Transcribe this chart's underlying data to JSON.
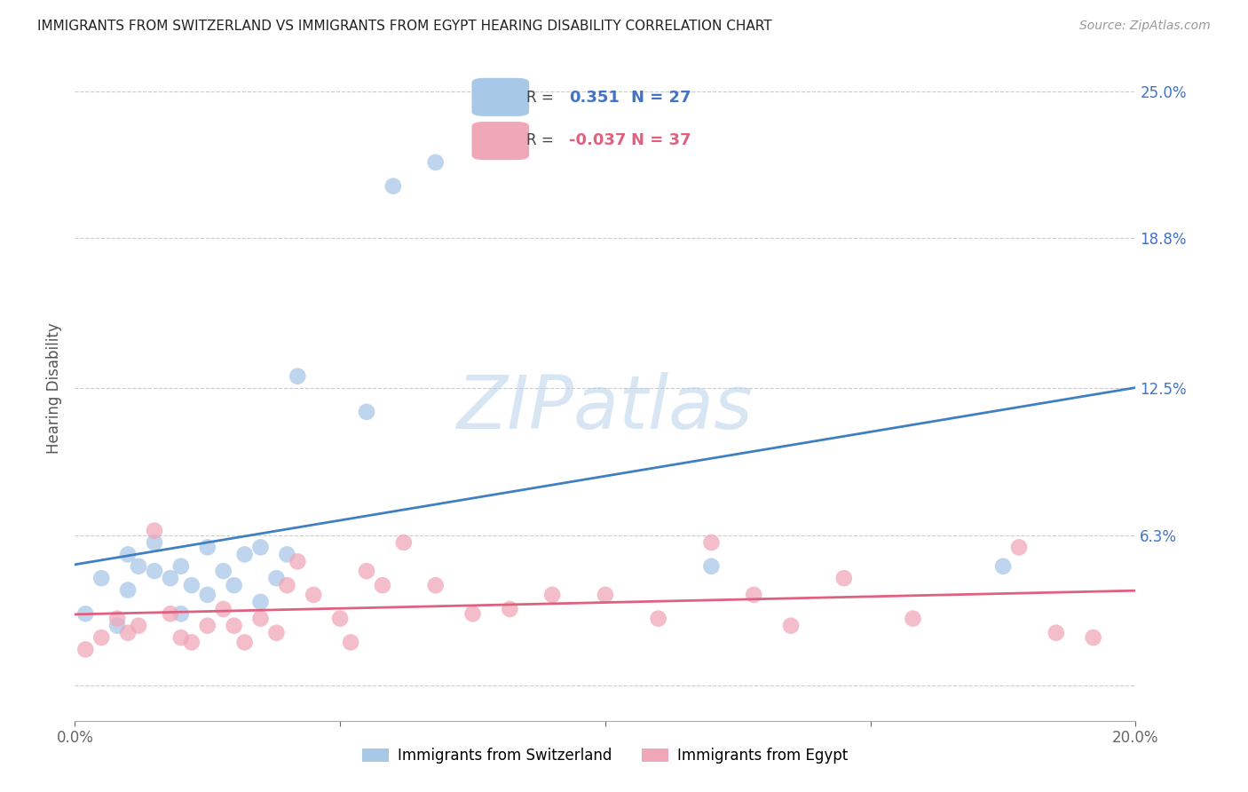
{
  "title": "IMMIGRANTS FROM SWITZERLAND VS IMMIGRANTS FROM EGYPT HEARING DISABILITY CORRELATION CHART",
  "source": "Source: ZipAtlas.com",
  "ylabel": "Hearing Disability",
  "xlim": [
    0.0,
    0.2
  ],
  "ylim": [
    -0.015,
    0.265
  ],
  "ytick_vals": [
    0.0,
    0.063,
    0.125,
    0.188,
    0.25
  ],
  "ytick_labels": [
    "0.0%",
    "6.3%",
    "12.5%",
    "18.8%",
    "25.0%"
  ],
  "xtick_vals": [
    0.0,
    0.05,
    0.1,
    0.15,
    0.2
  ],
  "xtick_labels": [
    "0.0%",
    "",
    "",
    "",
    "20.0%"
  ],
  "swiss_R": 0.351,
  "swiss_N": 27,
  "egypt_R": -0.037,
  "egypt_N": 37,
  "swiss_color": "#a8c8e8",
  "egypt_color": "#f0a8b8",
  "swiss_line_color": "#4080c0",
  "egypt_line_color": "#e06080",
  "legend_swiss_label": "Immigrants from Switzerland",
  "legend_egypt_label": "Immigrants from Egypt",
  "watermark": "ZIPatlas",
  "swiss_x": [
    0.002,
    0.005,
    0.008,
    0.01,
    0.01,
    0.012,
    0.015,
    0.015,
    0.018,
    0.02,
    0.02,
    0.022,
    0.025,
    0.025,
    0.028,
    0.03,
    0.032,
    0.035,
    0.035,
    0.038,
    0.04,
    0.042,
    0.055,
    0.06,
    0.068,
    0.12,
    0.175
  ],
  "swiss_y": [
    0.03,
    0.045,
    0.025,
    0.04,
    0.055,
    0.05,
    0.048,
    0.06,
    0.045,
    0.03,
    0.05,
    0.042,
    0.038,
    0.058,
    0.048,
    0.042,
    0.055,
    0.035,
    0.058,
    0.045,
    0.055,
    0.13,
    0.115,
    0.21,
    0.22,
    0.05,
    0.05
  ],
  "egypt_x": [
    0.002,
    0.005,
    0.008,
    0.01,
    0.012,
    0.015,
    0.018,
    0.02,
    0.022,
    0.025,
    0.028,
    0.03,
    0.032,
    0.035,
    0.038,
    0.04,
    0.042,
    0.045,
    0.05,
    0.052,
    0.055,
    0.058,
    0.062,
    0.068,
    0.075,
    0.082,
    0.09,
    0.1,
    0.11,
    0.12,
    0.128,
    0.135,
    0.145,
    0.158,
    0.178,
    0.185,
    0.192
  ],
  "egypt_y": [
    0.015,
    0.02,
    0.028,
    0.022,
    0.025,
    0.065,
    0.03,
    0.02,
    0.018,
    0.025,
    0.032,
    0.025,
    0.018,
    0.028,
    0.022,
    0.042,
    0.052,
    0.038,
    0.028,
    0.018,
    0.048,
    0.042,
    0.06,
    0.042,
    0.03,
    0.032,
    0.038,
    0.038,
    0.028,
    0.06,
    0.038,
    0.025,
    0.045,
    0.028,
    0.058,
    0.022,
    0.02
  ],
  "title_fontsize": 11,
  "source_fontsize": 10,
  "tick_fontsize": 12,
  "ylabel_fontsize": 12
}
